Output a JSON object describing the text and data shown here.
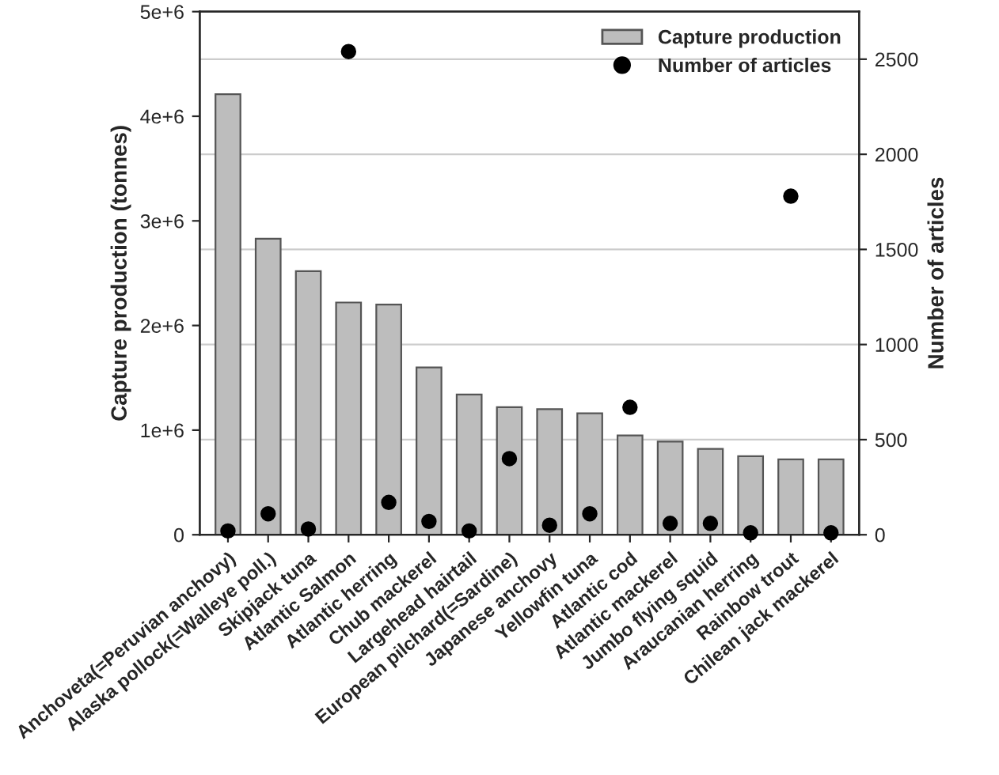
{
  "chart_data": {
    "type": "bar",
    "xlabel": null,
    "ylabel": "Capture production (tonnes)",
    "y2label": "Number of articles",
    "categories": [
      "Anchoveta(=Peruvian anchovy)",
      "Alaska pollock(=Walleye poll.)",
      "Skipjack tuna",
      "Atlantic Salmon",
      "Atlantic herring",
      "Chub mackerel",
      "Largehead hairtail",
      "European pilchard(=Sardine)",
      "Japanese anchovy",
      "Yellowfin tuna",
      "Atlantic cod",
      "Atlantic mackerel",
      "Jumbo flying squid",
      "Araucanian herring",
      "Rainbow trout",
      "Chilean jack mackerel"
    ],
    "series": [
      {
        "name": "Capture production",
        "color": "#bdbdbd",
        "values": [
          4210000,
          2830000,
          2520000,
          2220000,
          2200000,
          1600000,
          1340000,
          1220000,
          1200000,
          1160000,
          950000,
          890000,
          820000,
          750000,
          720000,
          720000
        ]
      },
      {
        "name": "Number of articles",
        "type": "scatter",
        "axis": "y2",
        "color": "#000000",
        "marker": "circle",
        "values": [
          20,
          110,
          30,
          2540,
          170,
          70,
          20,
          400,
          50,
          110,
          670,
          60,
          60,
          10,
          1780,
          10
        ]
      }
    ],
    "ylim": [
      0,
      5000000
    ],
    "yticks": [
      {
        "value": 0,
        "label": "0"
      },
      {
        "value": 1000000,
        "label": "1e+6"
      },
      {
        "value": 2000000,
        "label": "2e+6"
      },
      {
        "value": 3000000,
        "label": "3e+6"
      },
      {
        "value": 4000000,
        "label": "4e+6"
      },
      {
        "value": 5000000,
        "label": "5e+6"
      }
    ],
    "y2lim": [
      0,
      2750
    ],
    "y2ticks": [
      0,
      500,
      1000,
      1500,
      2000,
      2500
    ],
    "grid": "y2",
    "legend": "top right"
  }
}
